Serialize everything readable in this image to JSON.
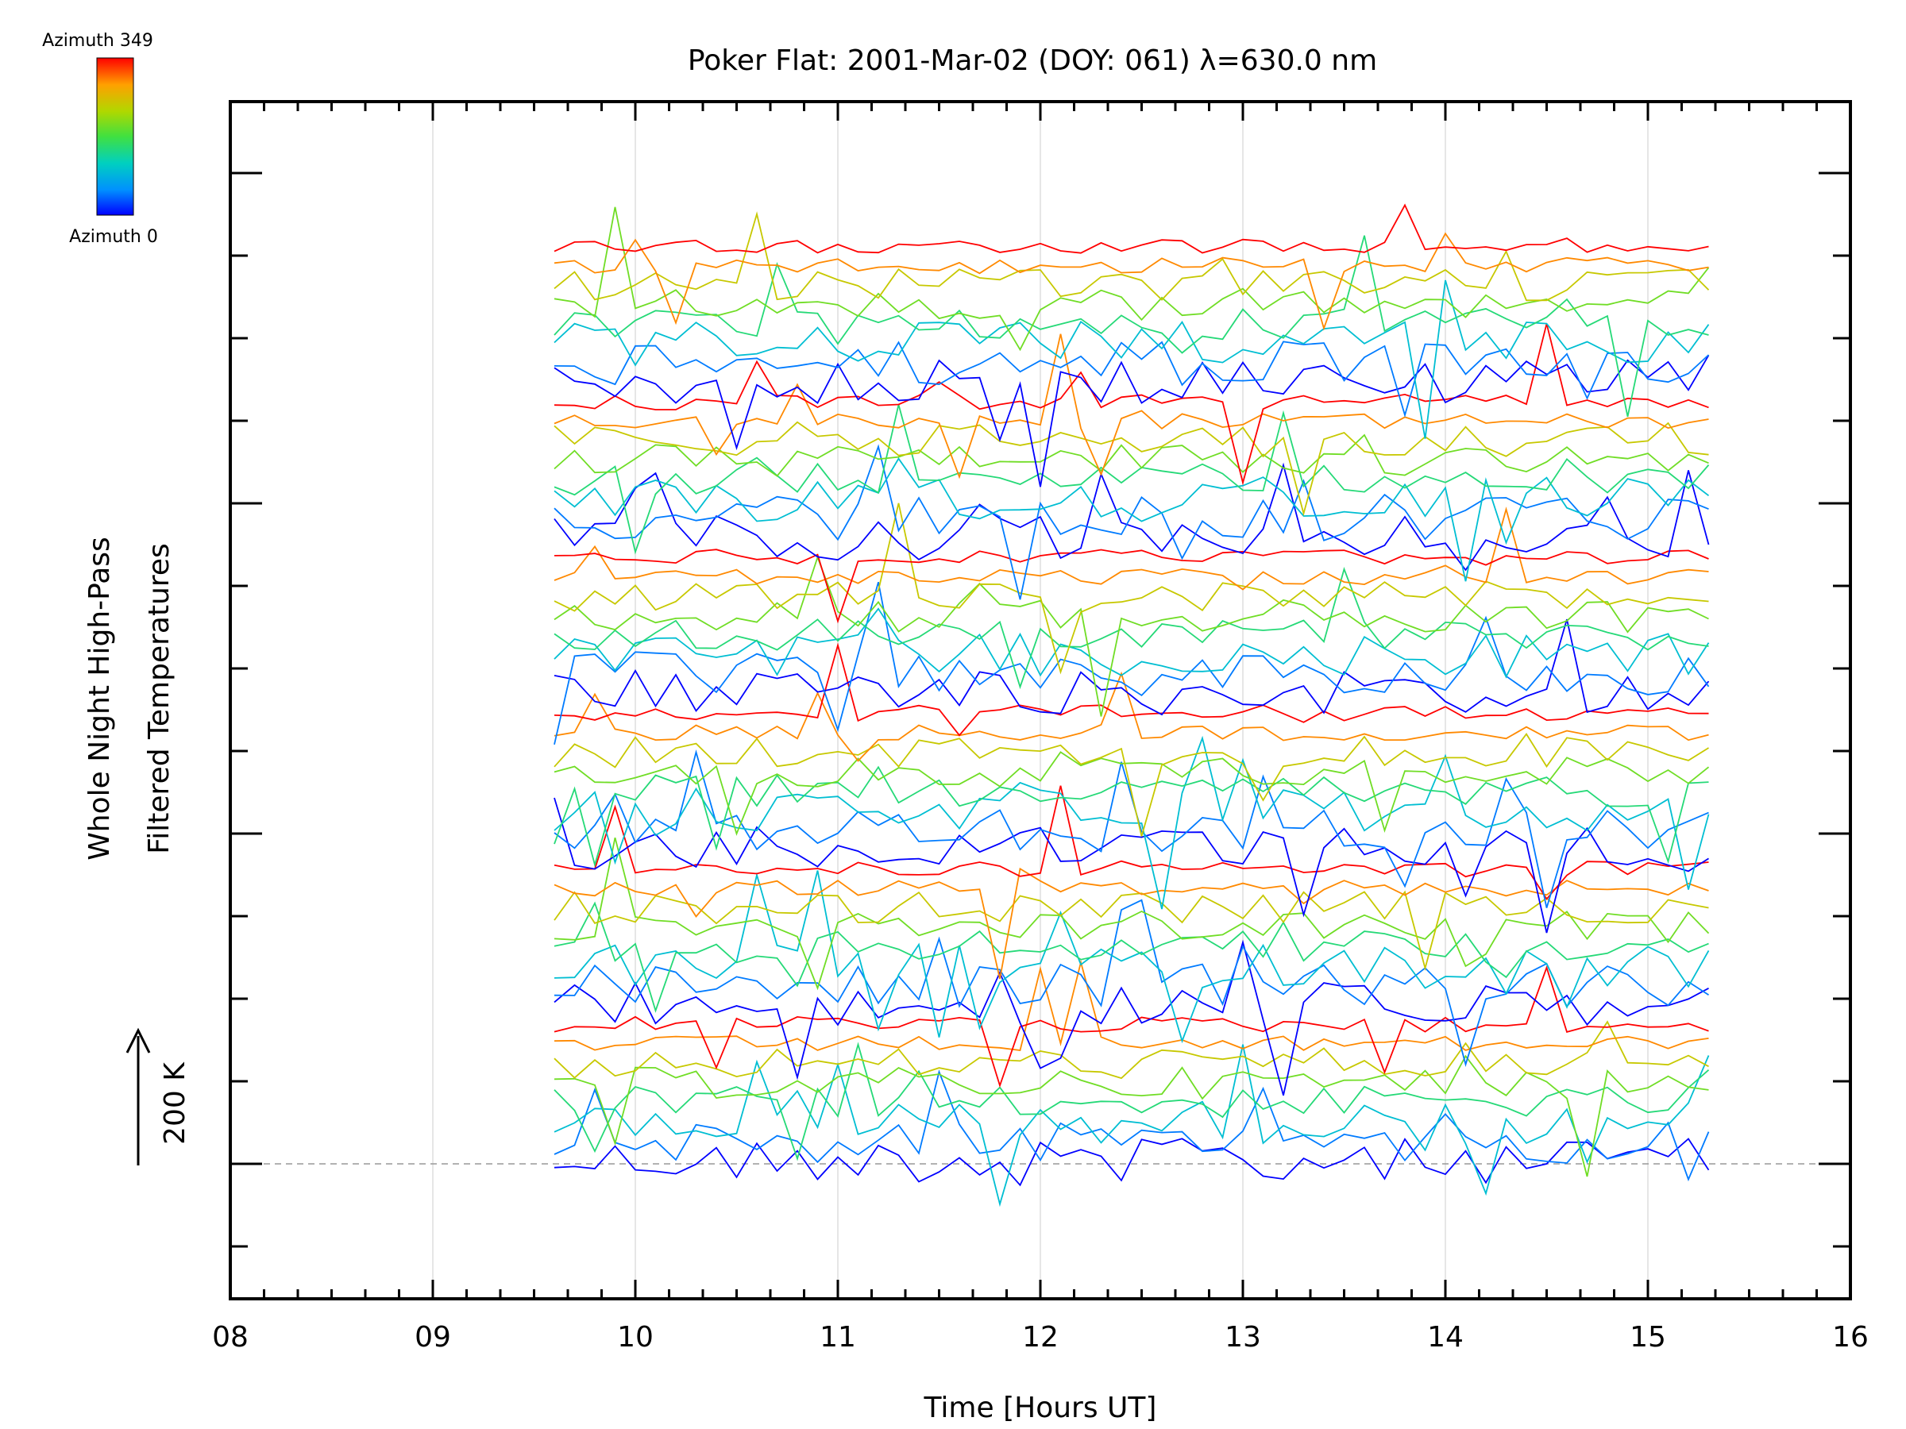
{
  "chart_data": {
    "type": "line",
    "title": "Poker Flat: 2001-Mar-02 (DOY: 061) λ=630.0 nm",
    "xlabel": "Time [Hours UT]",
    "ylabel_line1": "Whole Night High-Pass",
    "ylabel_line2": "Filtered Temperatures",
    "scale_label": "200 K",
    "xlim": [
      8,
      16
    ],
    "x_ticks": [
      "08",
      "09",
      "10",
      "11",
      "12",
      "13",
      "14",
      "15",
      "16"
    ],
    "x_tick_values": [
      8,
      9,
      10,
      11,
      12,
      13,
      14,
      15,
      16
    ],
    "legend": {
      "top_label": "Azimuth 349",
      "bottom_label": "Azimuth 0",
      "placement": "top-left",
      "colormap": [
        "#0000ff",
        "#0080ff",
        "#00c0c0",
        "#40d060",
        "#a0d000",
        "#e0c000",
        "#ff8000",
        "#ff0000"
      ]
    },
    "grid": "vertical-only",
    "baseline_style": "dashed",
    "time_start": 9.6,
    "time_step": 0.1,
    "series_count": 48,
    "series_note_visible": false
  }
}
